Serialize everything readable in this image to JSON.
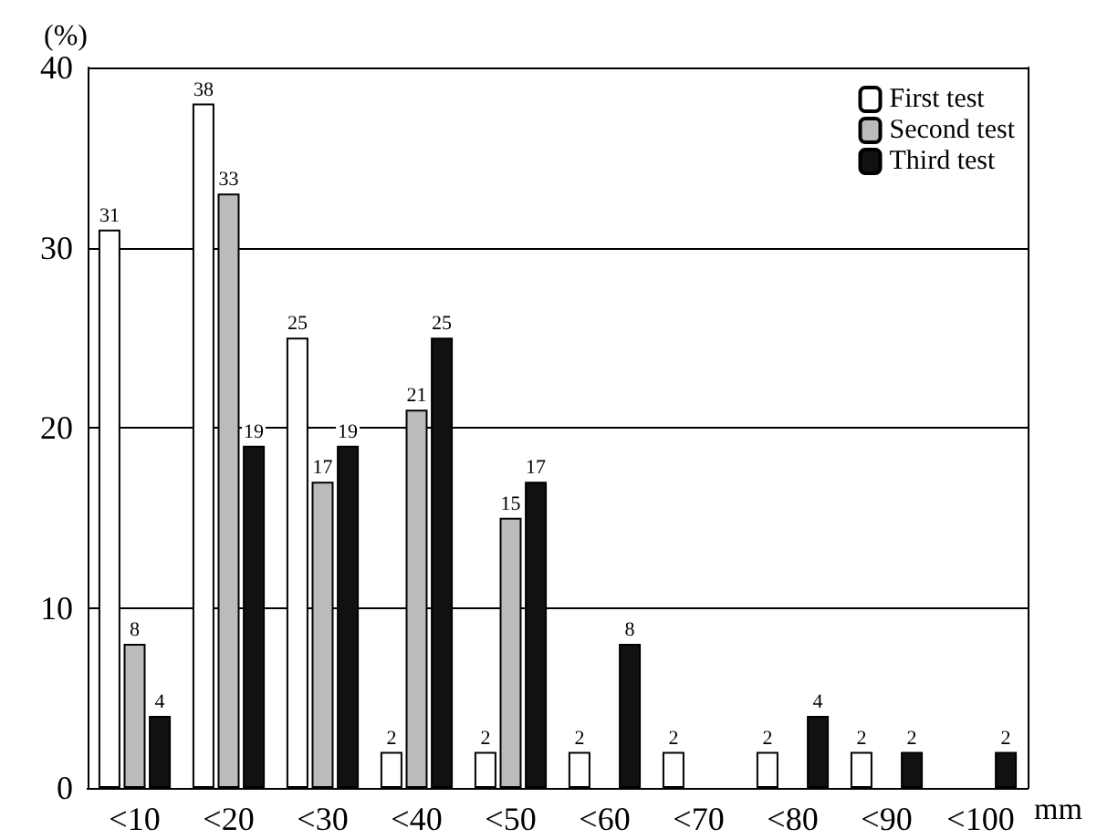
{
  "chart_data": {
    "type": "bar",
    "ylabel": "(%)",
    "xlabel": "mm",
    "categories": [
      "<10",
      "<20",
      "<30",
      "<40",
      "<50",
      "<60",
      "<70",
      "<80",
      "<90",
      "<100"
    ],
    "series": [
      {
        "name": "First test",
        "color": "#ffffff",
        "values": [
          31,
          38,
          25,
          2,
          2,
          2,
          2,
          2,
          2,
          null
        ]
      },
      {
        "name": "Second test",
        "color": "#bbbbbb",
        "values": [
          8,
          33,
          17,
          21,
          15,
          null,
          null,
          null,
          null,
          null
        ]
      },
      {
        "name": "Third test",
        "color": "#111111",
        "values": [
          4,
          19,
          19,
          25,
          17,
          8,
          null,
          4,
          2,
          2
        ]
      }
    ],
    "ylim": [
      0,
      40
    ],
    "yticks": [
      0,
      10,
      20,
      30,
      40
    ],
    "grid": "y",
    "legend": "top right",
    "data_labels": true
  }
}
